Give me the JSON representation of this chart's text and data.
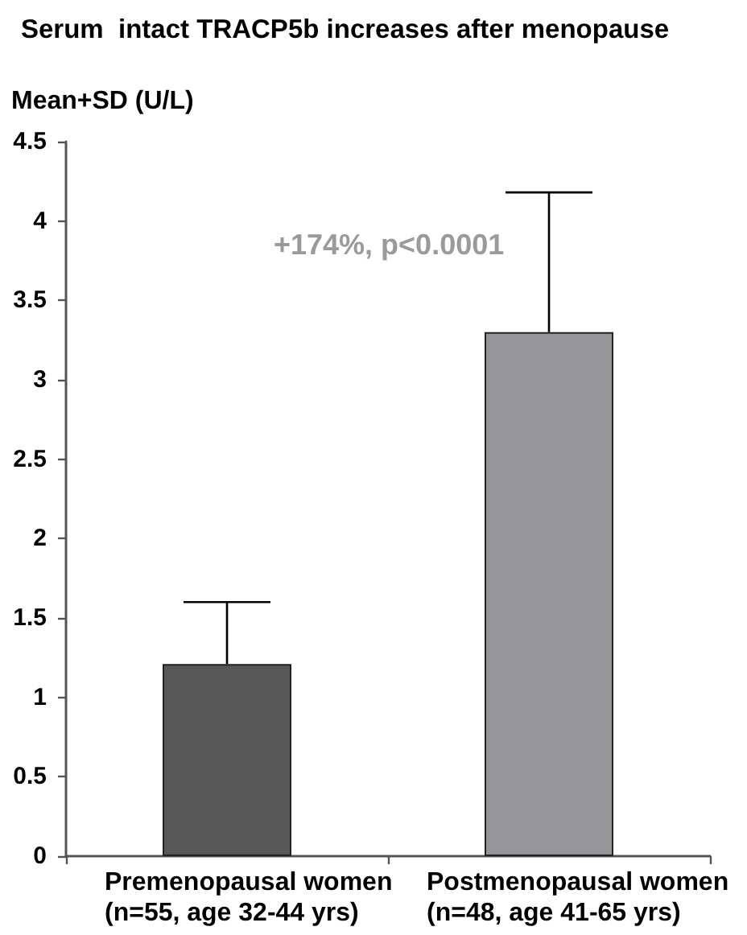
{
  "chart_data": {
    "type": "bar",
    "title": "Serum  intact TRACP5b increases after menopause",
    "ylabel": "Mean+SD (U/L)",
    "categories": [
      "Premenopausal women\n(n=55, age 32-44 yrs)",
      "Postmenopausal women\n(n=48, age 41-65 yrs)"
    ],
    "values": [
      1.21,
      3.3
    ],
    "colors": [
      "#58585a",
      "#939598"
    ],
    "errors": [
      [
        1.21,
        1.6
      ],
      [
        3.3,
        4.18
      ]
    ],
    "ylim": [
      0,
      4.5
    ],
    "yticks": [
      0,
      0.5,
      1,
      1.5,
      2,
      2.5,
      3,
      3.5,
      4,
      4.5
    ],
    "grid": false,
    "annotations": [
      "+174%, p<0.0001"
    ]
  }
}
